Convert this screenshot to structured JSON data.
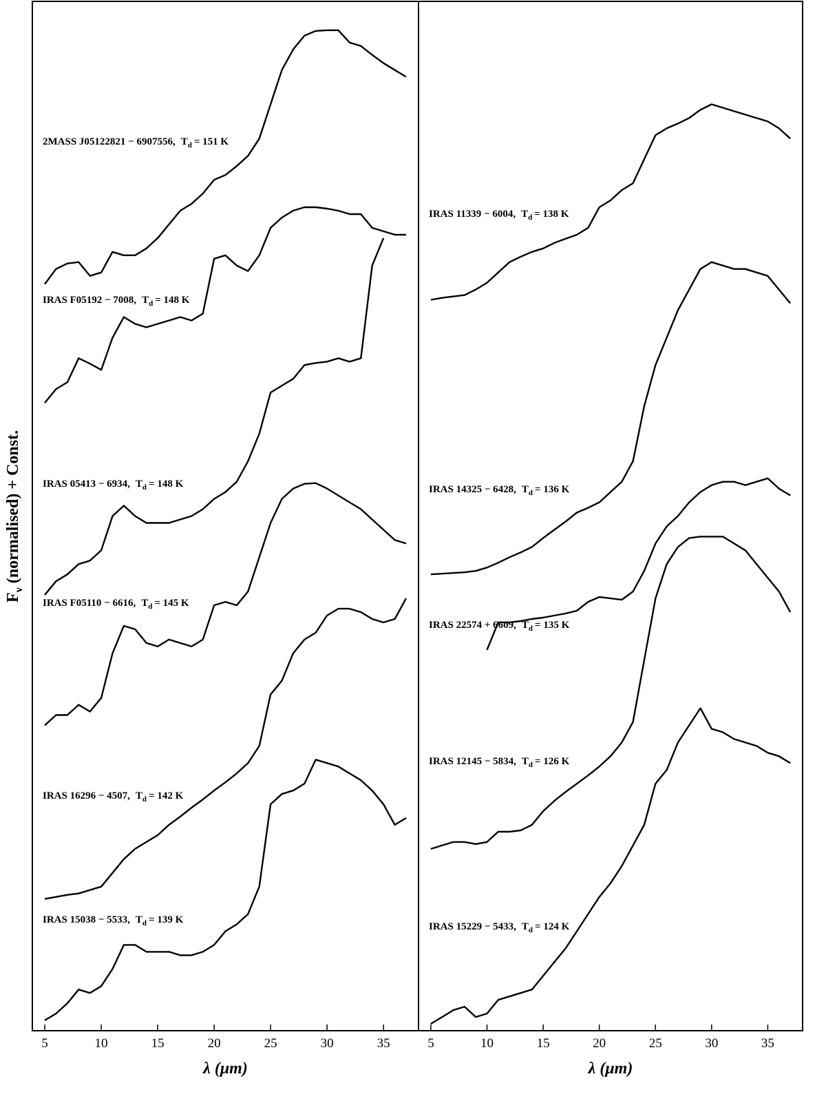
{
  "chart_data": [
    {
      "type": "line",
      "ylabel": {
        "main": "F",
        "sub": "ν",
        "rest": "(normalised) + Const."
      },
      "xlabel": "λ (μm)",
      "td_symbol": "T",
      "td_subscript": "d",
      "xlim": [
        3.9,
        38.1
      ],
      "ylim": [
        0,
        1500
      ],
      "xticks": [
        5,
        10,
        15,
        20,
        25,
        30,
        35
      ],
      "x": [
        5,
        6,
        7,
        8,
        9,
        10,
        11,
        12,
        13,
        14,
        15,
        16,
        17,
        18,
        19,
        20,
        21,
        22,
        23,
        24,
        25,
        26,
        27,
        28,
        29,
        30,
        31,
        32,
        33,
        34,
        35,
        36,
        37
      ],
      "series": [
        {
          "name": "2MASS J05122821 − 6907556,",
          "td_label": "= 151 K",
          "color": "#000000",
          "values": [
            1088,
            1110,
            1118,
            1120,
            1100,
            1105,
            1135,
            1130,
            1130,
            1140,
            1155,
            1175,
            1195,
            1205,
            1220,
            1240,
            1247,
            1260,
            1275,
            1300,
            1350,
            1400,
            1430,
            1450,
            1457,
            1458,
            1458,
            1440,
            1435,
            1422,
            1410,
            1400,
            1390
          ]
        },
        {
          "name": "IRAS F05192 − 7008,",
          "td_label": "= 148 K",
          "color": "#000000",
          "values": [
            915,
            935,
            945,
            980,
            972,
            963,
            1010,
            1040,
            1030,
            1025,
            1030,
            1035,
            1040,
            1035,
            1045,
            1125,
            1130,
            1115,
            1107,
            1130,
            1170,
            1185,
            1195,
            1200,
            1200,
            1198,
            1195,
            1190,
            1190,
            1170,
            1165,
            1160,
            1160
          ]
        },
        {
          "name": "IRAS 05413 − 6934,",
          "td_label": "= 148 K",
          "color": "#000000",
          "values": [
            635,
            655,
            665,
            680,
            685,
            700,
            750,
            765,
            750,
            740,
            740,
            740,
            745,
            750,
            760,
            775,
            785,
            800,
            830,
            870,
            930,
            940,
            950,
            970,
            973,
            975,
            980,
            975,
            980,
            1115,
            1155,
            null,
            null
          ]
        },
        {
          "name": "IRAS F05110 − 6616,",
          "td_label": "= 145 K",
          "color": "#000000",
          "values": [
            445,
            460,
            460,
            475,
            465,
            485,
            550,
            590,
            585,
            565,
            560,
            570,
            565,
            560,
            570,
            620,
            625,
            620,
            640,
            690,
            740,
            775,
            790,
            797,
            798,
            790,
            780,
            770,
            760,
            745,
            730,
            715,
            710
          ]
        },
        {
          "name": "IRAS 16296 − 4507,",
          "td_label": "= 142 K",
          "color": "#000000",
          "values": [
            192,
            195,
            198,
            200,
            205,
            210,
            230,
            250,
            265,
            275,
            285,
            300,
            312,
            325,
            337,
            350,
            362,
            375,
            390,
            415,
            490,
            510,
            550,
            570,
            580,
            605,
            615,
            615,
            610,
            600,
            595,
            600,
            630
          ]
        },
        {
          "name": "IRAS 15038 − 5533,",
          "td_label": "= 139 K",
          "color": "#000000",
          "values": [
            15,
            25,
            40,
            60,
            55,
            65,
            90,
            125,
            125,
            115,
            115,
            115,
            110,
            110,
            115,
            125,
            145,
            155,
            170,
            210,
            330,
            345,
            350,
            360,
            395,
            390,
            385,
            375,
            365,
            350,
            330,
            300,
            310
          ]
        }
      ]
    },
    {
      "type": "line",
      "xlabel": "λ (μm)",
      "td_symbol": "T",
      "td_subscript": "d",
      "xlim": [
        3.9,
        38.1
      ],
      "ylim": [
        0,
        1500
      ],
      "xticks": [
        5,
        10,
        15,
        20,
        25,
        30,
        35
      ],
      "x": [
        5,
        6,
        7,
        8,
        9,
        10,
        11,
        12,
        13,
        14,
        15,
        16,
        17,
        18,
        19,
        20,
        21,
        22,
        23,
        24,
        25,
        26,
        27,
        28,
        29,
        30,
        31,
        32,
        33,
        34,
        35,
        36,
        37
      ],
      "series": [
        {
          "name": "IRAS 11339 − 6004,",
          "td_label": "= 138 K",
          "color": "#000000",
          "values": [
            1065,
            1068,
            1070,
            1072,
            1080,
            1090,
            1105,
            1120,
            1128,
            1135,
            1140,
            1148,
            1154,
            1160,
            1170,
            1200,
            1210,
            1225,
            1235,
            1270,
            1305,
            1315,
            1322,
            1330,
            1342,
            1350,
            1345,
            1340,
            1335,
            1330,
            1325,
            1315,
            1300
          ]
        },
        {
          "name": "IRAS 14325 − 6428,",
          "td_label": "= 136 K",
          "color": "#000000",
          "values": [
            665,
            666,
            667,
            668,
            670,
            675,
            682,
            690,
            697,
            705,
            718,
            730,
            742,
            755,
            762,
            770,
            785,
            800,
            830,
            910,
            970,
            1010,
            1050,
            1080,
            1110,
            1120,
            1115,
            1110,
            1110,
            1105,
            1100,
            1080,
            1060
          ]
        },
        {
          "name": "IRAS 22574 + 6609,",
          "td_label": "= 135 K",
          "color": "#000000",
          "values": [
            null,
            null,
            null,
            null,
            null,
            555,
            595,
            595,
            597,
            600,
            602,
            605,
            608,
            612,
            625,
            632,
            630,
            628,
            640,
            670,
            710,
            735,
            750,
            770,
            785,
            795,
            800,
            800,
            795,
            800,
            805,
            790,
            780
          ]
        },
        {
          "name": "IRAS 12145 − 5834,",
          "td_label": "= 126 K",
          "color": "#000000",
          "values": [
            265,
            270,
            275,
            275,
            272,
            275,
            290,
            290,
            292,
            300,
            320,
            335,
            348,
            360,
            372,
            385,
            400,
            420,
            450,
            540,
            630,
            680,
            705,
            718,
            720,
            720,
            720,
            710,
            700,
            680,
            660,
            640,
            610
          ]
        },
        {
          "name": "IRAS 15229 − 5433,",
          "td_label": "= 124 K",
          "color": "#000000",
          "values": [
            10,
            20,
            30,
            35,
            20,
            25,
            45,
            50,
            55,
            60,
            80,
            100,
            120,
            145,
            170,
            195,
            215,
            240,
            270,
            300,
            360,
            380,
            420,
            445,
            470,
            440,
            435,
            425,
            420,
            415,
            405,
            400,
            390
          ]
        }
      ]
    }
  ]
}
